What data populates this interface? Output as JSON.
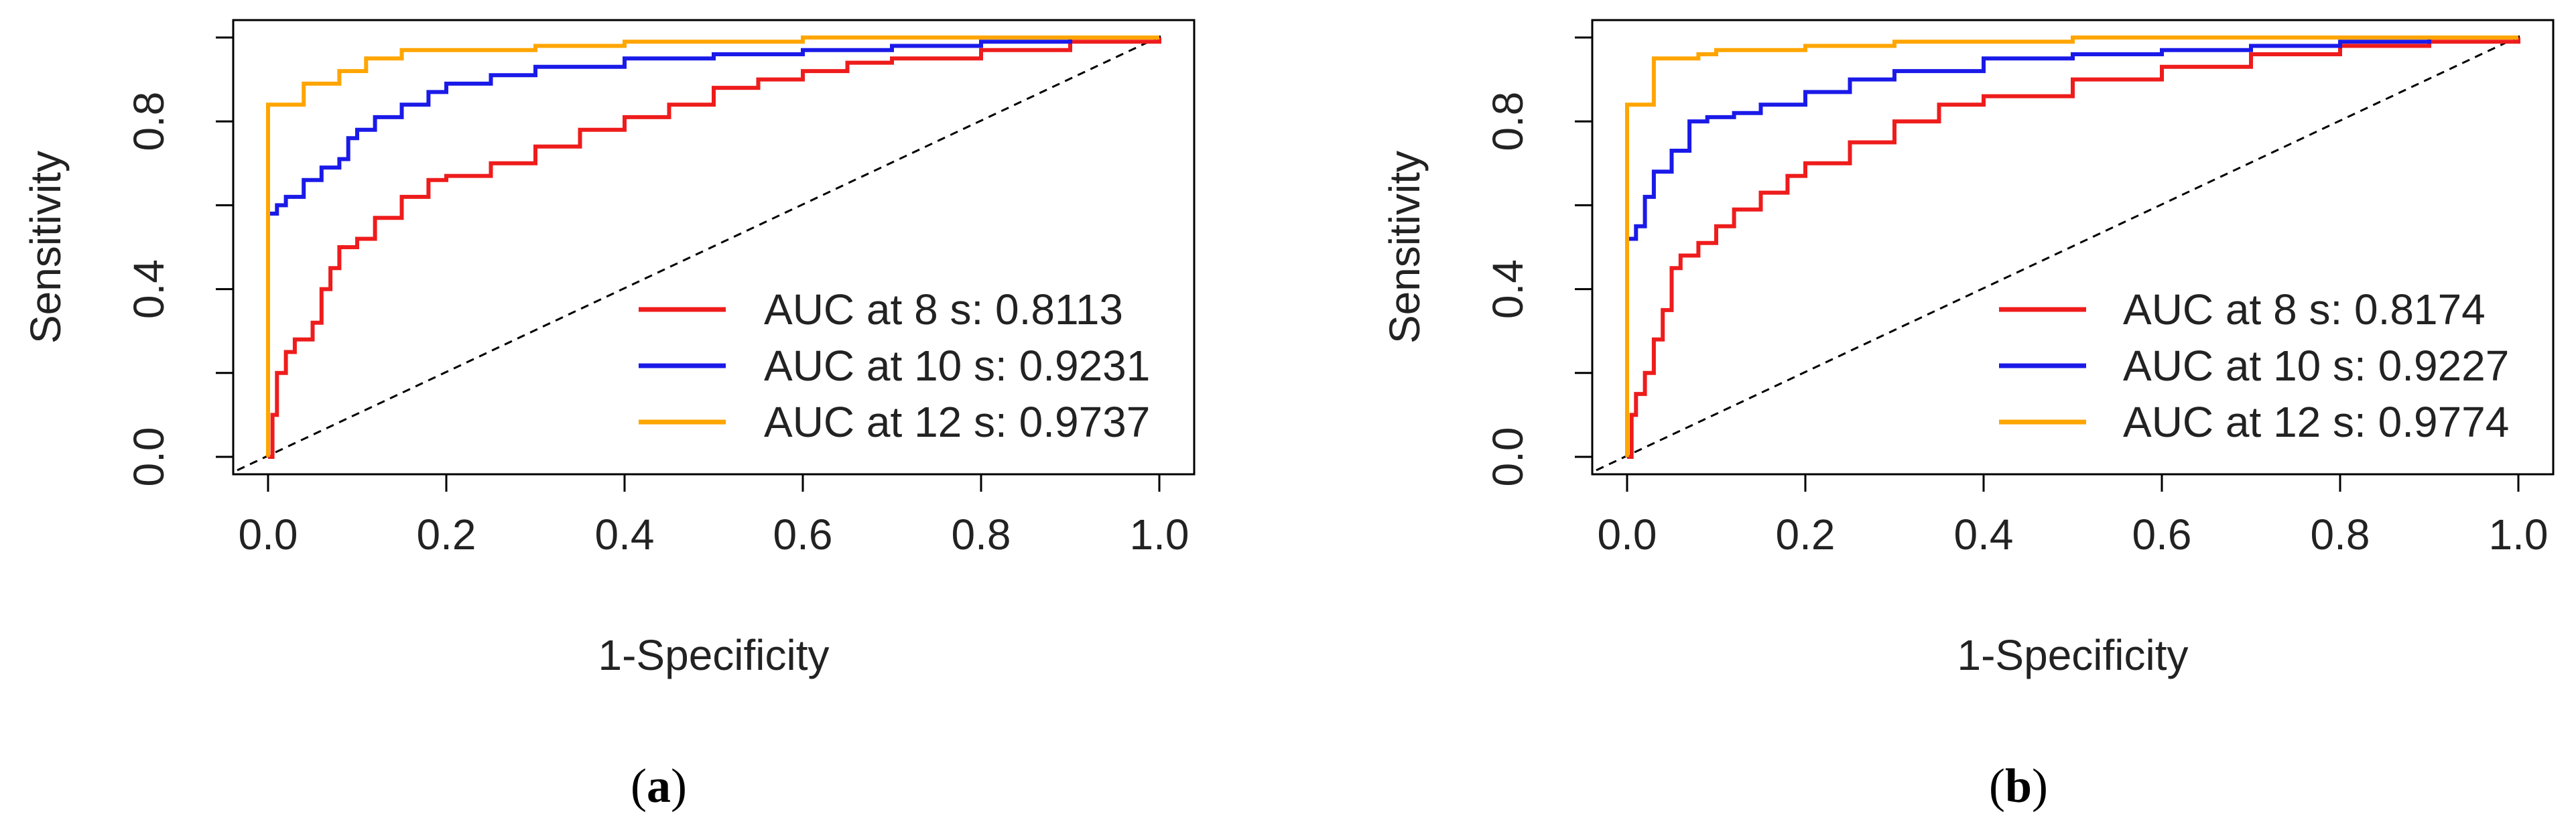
{
  "colors": {
    "series_8s": "#ee1c1c",
    "series_10s": "#1a1ae8",
    "series_12s": "#ffa500",
    "axis": "#000000",
    "diagonal": "#000000"
  },
  "chart_data": [
    {
      "type": "line",
      "panel_caption": {
        "open": "(",
        "label": "a",
        "close": ")"
      },
      "xlabel": "1-Specificity",
      "ylabel": "Sensitivity",
      "xlim": [
        0.0,
        1.0
      ],
      "ylim": [
        0.0,
        1.0
      ],
      "x_ticks": [
        "0.0",
        "0.2",
        "0.4",
        "0.6",
        "0.8",
        "1.0"
      ],
      "y_ticks": [
        "0.0",
        "0.4",
        "0.8"
      ],
      "grid": false,
      "legend_position": "bottom-right",
      "reference_line": "diagonal",
      "series": [
        {
          "name": "AUC at 8 s: 0.8113",
          "color_key": "series_8s",
          "x": [
            0.0,
            0.005,
            0.01,
            0.02,
            0.03,
            0.05,
            0.06,
            0.07,
            0.08,
            0.1,
            0.12,
            0.15,
            0.18,
            0.2,
            0.25,
            0.3,
            0.35,
            0.4,
            0.45,
            0.5,
            0.55,
            0.6,
            0.65,
            0.7,
            0.8,
            0.9,
            1.0
          ],
          "y": [
            0.0,
            0.1,
            0.2,
            0.25,
            0.28,
            0.32,
            0.4,
            0.45,
            0.5,
            0.52,
            0.57,
            0.62,
            0.66,
            0.67,
            0.7,
            0.74,
            0.78,
            0.81,
            0.84,
            0.88,
            0.9,
            0.92,
            0.94,
            0.95,
            0.97,
            0.99,
            1.0
          ]
        },
        {
          "name": "AUC at 10 s: 0.9231",
          "color_key": "series_10s",
          "x": [
            0.0,
            0.0,
            0.01,
            0.02,
            0.04,
            0.06,
            0.08,
            0.09,
            0.1,
            0.12,
            0.15,
            0.18,
            0.2,
            0.25,
            0.3,
            0.4,
            0.5,
            0.6,
            0.7,
            0.8,
            0.9,
            1.0
          ],
          "y": [
            0.0,
            0.58,
            0.6,
            0.62,
            0.66,
            0.69,
            0.71,
            0.76,
            0.78,
            0.81,
            0.84,
            0.87,
            0.89,
            0.91,
            0.93,
            0.95,
            0.96,
            0.97,
            0.98,
            0.99,
            1.0,
            1.0
          ]
        },
        {
          "name": "AUC at 12 s: 0.9737",
          "color_key": "series_12s",
          "x": [
            0.0,
            0.0,
            0.04,
            0.04,
            0.08,
            0.08,
            0.11,
            0.11,
            0.15,
            0.2,
            0.3,
            0.4,
            0.5,
            0.6,
            0.8,
            1.0
          ],
          "y": [
            0.0,
            0.84,
            0.84,
            0.89,
            0.89,
            0.92,
            0.92,
            0.95,
            0.97,
            0.97,
            0.98,
            0.99,
            0.99,
            1.0,
            1.0,
            1.0
          ]
        }
      ]
    },
    {
      "type": "line",
      "panel_caption": {
        "open": "(",
        "label": "b",
        "close": ")"
      },
      "xlabel": "1-Specificity",
      "ylabel": "Sensitivity",
      "xlim": [
        0.0,
        1.0
      ],
      "ylim": [
        0.0,
        1.0
      ],
      "x_ticks": [
        "0.0",
        "0.2",
        "0.4",
        "0.6",
        "0.8",
        "1.0"
      ],
      "y_ticks": [
        "0.0",
        "0.4",
        "0.8"
      ],
      "grid": false,
      "legend_position": "bottom-right",
      "reference_line": "diagonal",
      "series": [
        {
          "name": "AUC at 8 s: 0.8174",
          "color_key": "series_8s",
          "x": [
            0.0,
            0.005,
            0.01,
            0.02,
            0.03,
            0.04,
            0.05,
            0.06,
            0.08,
            0.1,
            0.12,
            0.15,
            0.18,
            0.2,
            0.25,
            0.3,
            0.35,
            0.4,
            0.5,
            0.6,
            0.7,
            0.8,
            0.9,
            1.0
          ],
          "y": [
            0.0,
            0.1,
            0.15,
            0.2,
            0.28,
            0.35,
            0.45,
            0.48,
            0.51,
            0.55,
            0.59,
            0.63,
            0.67,
            0.7,
            0.75,
            0.8,
            0.84,
            0.86,
            0.9,
            0.93,
            0.96,
            0.98,
            0.99,
            1.0
          ]
        },
        {
          "name": "AUC at 10 s: 0.9227",
          "color_key": "series_10s",
          "x": [
            0.0,
            0.0,
            0.01,
            0.02,
            0.03,
            0.05,
            0.07,
            0.09,
            0.12,
            0.15,
            0.2,
            0.25,
            0.3,
            0.4,
            0.5,
            0.6,
            0.7,
            0.8,
            0.9,
            1.0
          ],
          "y": [
            0.0,
            0.52,
            0.55,
            0.62,
            0.68,
            0.73,
            0.8,
            0.81,
            0.82,
            0.84,
            0.87,
            0.9,
            0.92,
            0.95,
            0.96,
            0.97,
            0.98,
            0.99,
            1.0,
            1.0
          ]
        },
        {
          "name": "AUC at 12 s: 0.9774",
          "color_key": "series_12s",
          "x": [
            0.0,
            0.0,
            0.03,
            0.03,
            0.08,
            0.1,
            0.15,
            0.2,
            0.3,
            0.4,
            0.5,
            0.6,
            0.8,
            1.0
          ],
          "y": [
            0.0,
            0.84,
            0.84,
            0.95,
            0.96,
            0.97,
            0.97,
            0.98,
            0.99,
            0.99,
            1.0,
            1.0,
            1.0,
            1.0
          ]
        }
      ]
    }
  ]
}
